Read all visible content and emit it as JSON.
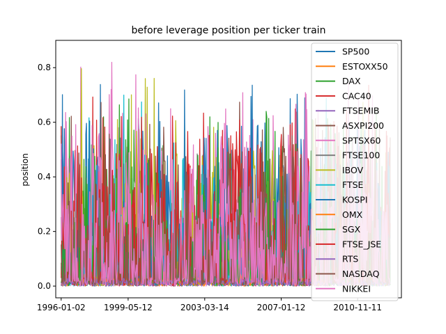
{
  "chart_data": {
    "type": "line",
    "title": "before leverage position per ticker train",
    "xlabel": "",
    "ylabel": "position",
    "x_ticks": [
      "1996-01-02",
      "1999-05-12",
      "2003-03-14",
      "2007-01-12",
      "2010-11-11"
    ],
    "x_range": [
      "1995-09-25",
      "2013-01-20"
    ],
    "y_ticks": [
      "0.0",
      "0.2",
      "0.4",
      "0.6",
      "0.8"
    ],
    "y_tick_values": [
      0.0,
      0.2,
      0.4,
      0.6,
      0.8
    ],
    "ylim": [
      -0.043,
      0.9
    ],
    "grid": false,
    "legend_position": "upper-right",
    "series": [
      {
        "name": "SP500",
        "color": "#1f77b4",
        "seed": 11,
        "base": 0.16,
        "spread": 0.55,
        "peak": 0.86,
        "x_start": "1996-01-02",
        "x_end": "2012-06-29"
      },
      {
        "name": "ESTOXX50",
        "color": "#ff7f0e",
        "seed": 23,
        "base": 0.02,
        "spread": 0.05,
        "peak": 0.1,
        "x_start": "1996-01-02",
        "x_end": "2012-06-29"
      },
      {
        "name": "DAX",
        "color": "#2ca02c",
        "seed": 37,
        "base": 0.18,
        "spread": 0.45,
        "peak": 0.7,
        "x_start": "1996-01-02",
        "x_end": "2012-06-29"
      },
      {
        "name": "CAC40",
        "color": "#d62728",
        "seed": 41,
        "base": 0.2,
        "spread": 0.45,
        "peak": 0.74,
        "x_start": "1996-01-02",
        "x_end": "2012-06-29"
      },
      {
        "name": "FTSEMIB",
        "color": "#9467bd",
        "seed": 53,
        "base": 0.01,
        "spread": 0.02,
        "peak": 0.05,
        "x_start": "1996-01-02",
        "x_end": "2012-06-29"
      },
      {
        "name": "ASXPI200",
        "color": "#8c564b",
        "seed": 61,
        "base": 0.15,
        "spread": 0.45,
        "peak": 0.68,
        "x_start": "1996-01-02",
        "x_end": "2012-06-29"
      },
      {
        "name": "SPTSX60",
        "color": "#e377c2",
        "seed": 67,
        "base": 0.2,
        "spread": 0.45,
        "peak": 0.82,
        "x_start": "1996-01-02",
        "x_end": "2012-06-29"
      },
      {
        "name": "FTSE100",
        "color": "#7f7f7f",
        "seed": 71,
        "base": 0.12,
        "spread": 0.3,
        "peak": 0.5,
        "x_start": "1996-01-02",
        "x_end": "2012-06-29"
      },
      {
        "name": "IBOV",
        "color": "#bcbd22",
        "seed": 79,
        "base": 0.14,
        "spread": 0.45,
        "peak": 0.8,
        "x_start": "1996-01-02",
        "x_end": "2012-06-29"
      },
      {
        "name": "FTSE",
        "color": "#17becf",
        "seed": 83,
        "base": 0.14,
        "spread": 0.4,
        "peak": 0.72,
        "x_start": "1996-01-02",
        "x_end": "2012-06-29"
      },
      {
        "name": "KOSPI",
        "color": "#1f77b4",
        "seed": 89,
        "base": 0.16,
        "spread": 0.45,
        "peak": 0.75,
        "x_start": "1996-01-02",
        "x_end": "2012-06-29"
      },
      {
        "name": "OMX",
        "color": "#ff7f0e",
        "seed": 97,
        "base": 0.02,
        "spread": 0.05,
        "peak": 0.1,
        "x_start": "1996-01-02",
        "x_end": "2012-06-29"
      },
      {
        "name": "SGX",
        "color": "#2ca02c",
        "seed": 101,
        "base": 0.16,
        "spread": 0.45,
        "peak": 0.7,
        "x_start": "1996-01-02",
        "x_end": "2012-06-29"
      },
      {
        "name": "FTSE_JSE",
        "color": "#d62728",
        "seed": 103,
        "base": 0.18,
        "spread": 0.45,
        "peak": 0.72,
        "x_start": "1996-01-02",
        "x_end": "2012-06-29"
      },
      {
        "name": "RTS",
        "color": "#9467bd",
        "seed": 107,
        "base": 0.01,
        "spread": 0.02,
        "peak": 0.05,
        "x_start": "1996-01-02",
        "x_end": "2012-06-29"
      },
      {
        "name": "NASDAQ",
        "color": "#8c564b",
        "seed": 109,
        "base": 0.14,
        "spread": 0.45,
        "peak": 0.7,
        "x_start": "1996-01-02",
        "x_end": "2012-06-29"
      },
      {
        "name": "NIKKEI",
        "color": "#e377c2",
        "seed": 113,
        "base": 0.22,
        "spread": 0.5,
        "peak": 0.82,
        "x_start": "1996-01-02",
        "x_end": "2012-06-29"
      }
    ]
  }
}
